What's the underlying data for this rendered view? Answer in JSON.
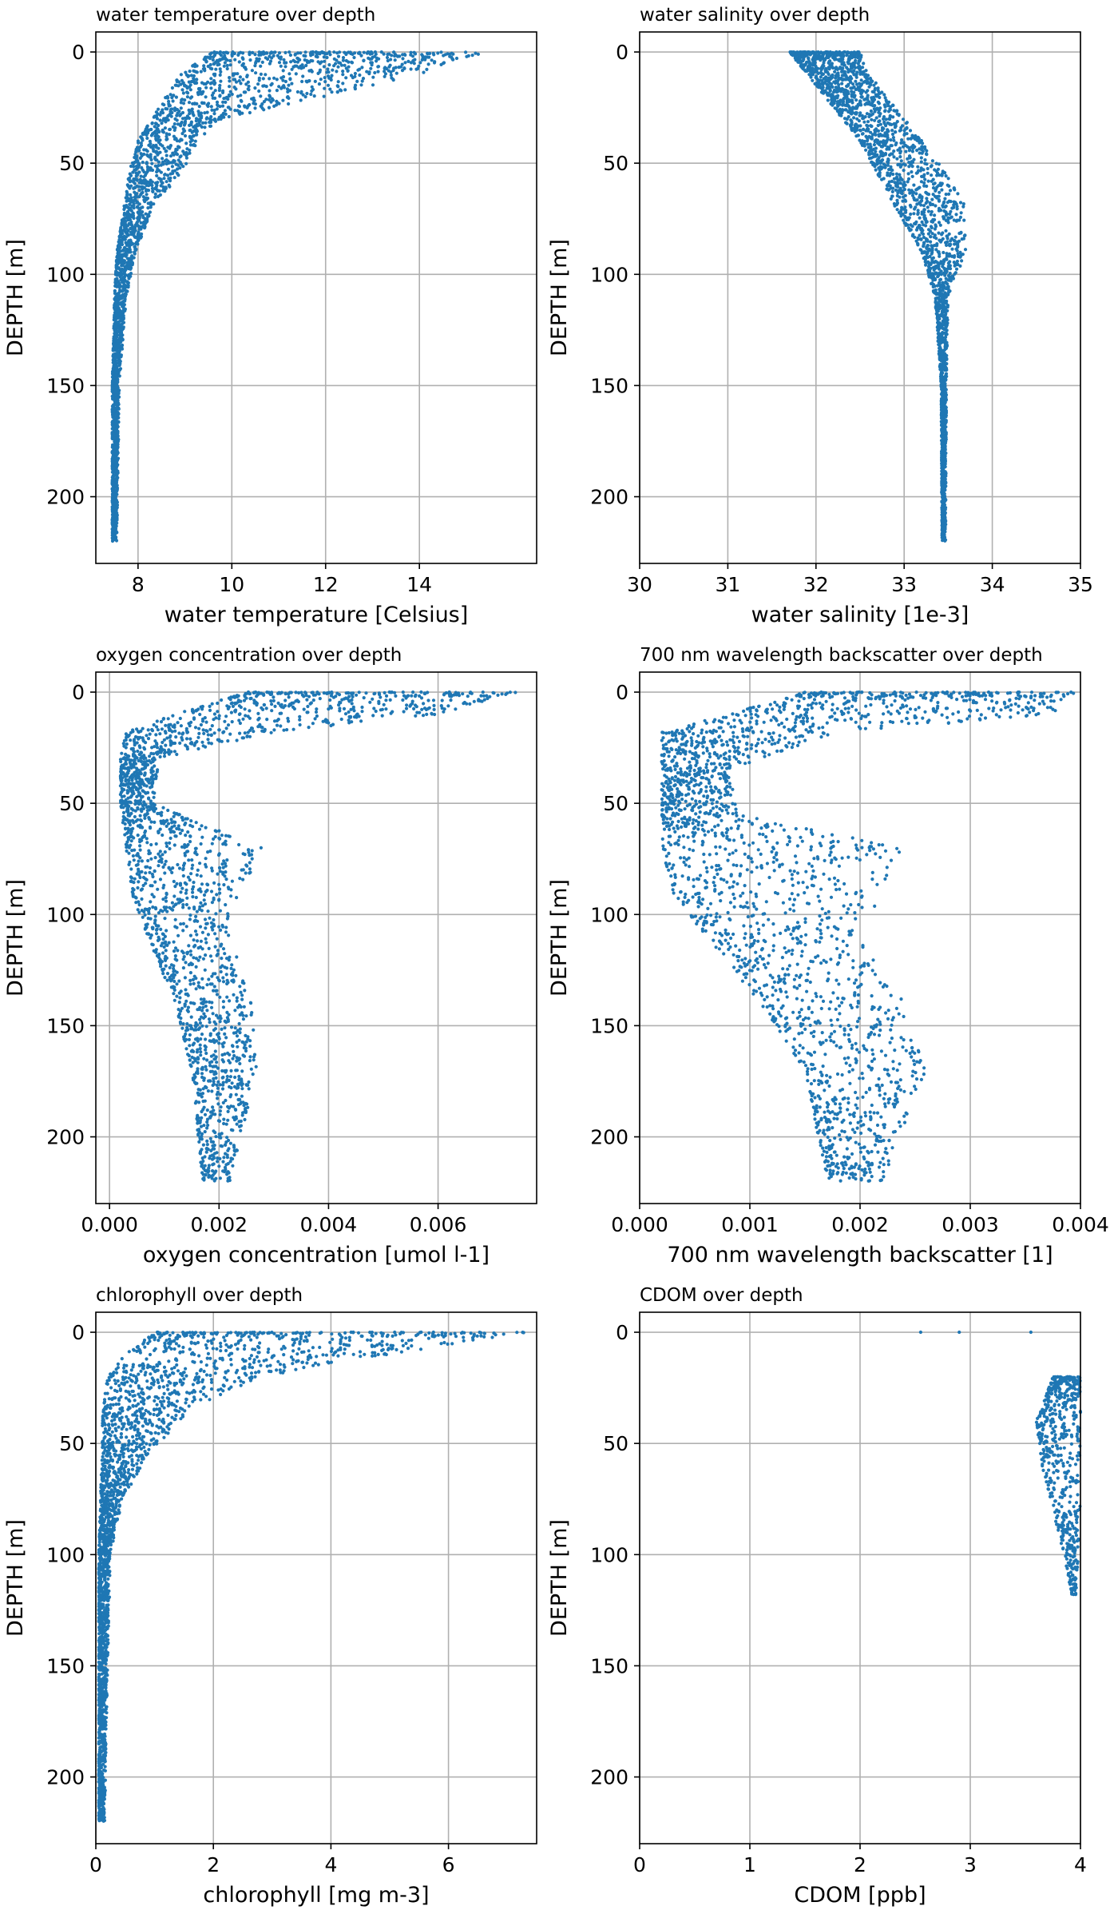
{
  "figure": {
    "marker_color": "#1f77b4",
    "grid": true
  },
  "chart_data": [
    {
      "type": "scatter",
      "title": "water temperature over depth",
      "xlabel": "water temperature [Celsius]",
      "ylabel": "DEPTH [m]",
      "xlim": [
        7.1,
        16.5
      ],
      "ylim": [
        230,
        -9
      ],
      "y_inverted": true,
      "xticks": [
        8,
        10,
        12,
        14
      ],
      "xtick_labels": [
        "8",
        "10",
        "12",
        "14"
      ],
      "yticks": [
        0,
        50,
        100,
        150,
        200
      ],
      "ytick_labels": [
        "0",
        "50",
        "100",
        "150",
        "200"
      ],
      "profile": [
        [
          0,
          9.6,
          15.4
        ],
        [
          10,
          8.9,
          14.0
        ],
        [
          20,
          8.6,
          12.0
        ],
        [
          30,
          8.3,
          9.8
        ],
        [
          40,
          8.0,
          9.3
        ],
        [
          55,
          7.8,
          8.9
        ],
        [
          70,
          7.7,
          8.3
        ],
        [
          90,
          7.55,
          7.95
        ],
        [
          110,
          7.5,
          7.75
        ],
        [
          150,
          7.45,
          7.6
        ],
        [
          220,
          7.45,
          7.55
        ]
      ],
      "point_count": 2600
    },
    {
      "type": "scatter",
      "title": "water salinity over depth",
      "xlabel": "water salinity [1e-3]",
      "ylabel": "DEPTH [m]",
      "xlim": [
        30,
        35
      ],
      "ylim": [
        230,
        -9
      ],
      "y_inverted": true,
      "xticks": [
        30,
        31,
        32,
        33,
        34,
        35
      ],
      "xtick_labels": [
        "30",
        "31",
        "32",
        "33",
        "34",
        "35"
      ],
      "yticks": [
        0,
        50,
        100,
        150,
        200
      ],
      "ytick_labels": [
        "0",
        "50",
        "100",
        "150",
        "200"
      ],
      "profile": [
        [
          0,
          31.7,
          32.5
        ],
        [
          10,
          31.9,
          32.6
        ],
        [
          25,
          32.2,
          32.9
        ],
        [
          40,
          32.5,
          33.2
        ],
        [
          55,
          32.7,
          33.5
        ],
        [
          70,
          32.9,
          33.7
        ],
        [
          90,
          33.2,
          33.7
        ],
        [
          110,
          33.35,
          33.5
        ],
        [
          150,
          33.42,
          33.48
        ],
        [
          220,
          33.43,
          33.47
        ]
      ],
      "point_count": 2600
    },
    {
      "type": "scatter",
      "title": "oxygen concentration over depth",
      "xlabel": "oxygen concentration [umol l-1]",
      "ylabel": "DEPTH [m]",
      "xlim": [
        -0.00025,
        0.0078
      ],
      "ylim": [
        230,
        -9
      ],
      "y_inverted": true,
      "xticks": [
        0,
        0.002,
        0.004,
        0.006
      ],
      "xtick_labels": [
        "0.000",
        "0.002",
        "0.004",
        "0.006"
      ],
      "yticks": [
        0,
        50,
        100,
        150,
        200
      ],
      "ytick_labels": [
        "0",
        "50",
        "100",
        "150",
        "200"
      ],
      "profile": [
        [
          0,
          0.0025,
          0.0075
        ],
        [
          10,
          0.0012,
          0.006
        ],
        [
          18,
          0.0003,
          0.003
        ],
        [
          30,
          0.0002,
          0.0009
        ],
        [
          50,
          0.0002,
          0.0008
        ],
        [
          70,
          0.0003,
          0.0028
        ],
        [
          90,
          0.0004,
          0.0024
        ],
        [
          110,
          0.0007,
          0.0022
        ],
        [
          140,
          0.0012,
          0.0026
        ],
        [
          170,
          0.0015,
          0.0027
        ],
        [
          220,
          0.0017,
          0.0022
        ]
      ],
      "point_count": 2200
    },
    {
      "type": "scatter",
      "title": "700 nm wavelength backscatter over depth",
      "xlabel": "700 nm wavelength backscatter [1]",
      "ylabel": "DEPTH [m]",
      "xlim": [
        0,
        0.004
      ],
      "ylim": [
        230,
        -9
      ],
      "y_inverted": true,
      "xticks": [
        0,
        0.001,
        0.002,
        0.003,
        0.004
      ],
      "xtick_labels": [
        "0.000",
        "0.001",
        "0.002",
        "0.003",
        "0.004"
      ],
      "yticks": [
        0,
        50,
        100,
        150,
        200
      ],
      "ytick_labels": [
        "0",
        "50",
        "100",
        "150",
        "200"
      ],
      "profile": [
        [
          0,
          0.0015,
          0.004
        ],
        [
          10,
          0.0008,
          0.0038
        ],
        [
          18,
          0.0002,
          0.0018
        ],
        [
          35,
          0.0002,
          0.0008
        ],
        [
          55,
          0.0002,
          0.0009
        ],
        [
          70,
          0.0002,
          0.0024
        ],
        [
          90,
          0.0003,
          0.0022
        ],
        [
          110,
          0.0006,
          0.002
        ],
        [
          140,
          0.0011,
          0.0024
        ],
        [
          170,
          0.0015,
          0.0026
        ],
        [
          220,
          0.0017,
          0.0022
        ]
      ],
      "point_count": 2200
    },
    {
      "type": "scatter",
      "title": "chlorophyll over depth",
      "xlabel": "chlorophyll [mg m-3]",
      "ylabel": "DEPTH [m]",
      "xlim": [
        0,
        7.5
      ],
      "ylim": [
        230,
        -9
      ],
      "y_inverted": true,
      "xticks": [
        0,
        2,
        4,
        6
      ],
      "xtick_labels": [
        "0",
        "2",
        "4",
        "6"
      ],
      "yticks": [
        0,
        50,
        100,
        150,
        200
      ],
      "ytick_labels": [
        "0",
        "50",
        "100",
        "150",
        "200"
      ],
      "profile": [
        [
          0,
          1.0,
          7.4
        ],
        [
          10,
          0.5,
          5.0
        ],
        [
          20,
          0.2,
          2.8
        ],
        [
          35,
          0.12,
          1.6
        ],
        [
          55,
          0.1,
          0.9
        ],
        [
          75,
          0.08,
          0.45
        ],
        [
          100,
          0.05,
          0.25
        ],
        [
          150,
          0.05,
          0.2
        ],
        [
          220,
          0.05,
          0.15
        ]
      ],
      "point_count": 2400
    },
    {
      "type": "scatter",
      "title": "CDOM over depth",
      "xlabel": "CDOM [ppb]",
      "ylabel": "DEPTH [m]",
      "xlim": [
        0,
        4
      ],
      "ylim": [
        230,
        -9
      ],
      "y_inverted": true,
      "xticks": [
        0,
        1,
        2,
        3,
        4
      ],
      "xtick_labels": [
        "0",
        "1",
        "2",
        "3",
        "4"
      ],
      "yticks": [
        0,
        50,
        100,
        150,
        200
      ],
      "ytick_labels": [
        "0",
        "50",
        "100",
        "150",
        "200"
      ],
      "profile": [
        [
          20,
          3.75,
          4.0
        ],
        [
          40,
          3.6,
          4.0
        ],
        [
          60,
          3.65,
          4.0
        ],
        [
          80,
          3.75,
          4.0
        ],
        [
          100,
          3.85,
          3.98
        ],
        [
          118,
          3.92,
          3.96
        ]
      ],
      "outliers": [
        [
          2.55,
          0
        ],
        [
          2.9,
          0
        ],
        [
          3.55,
          0
        ],
        [
          3.92,
          117
        ]
      ],
      "point_count": 600
    }
  ]
}
